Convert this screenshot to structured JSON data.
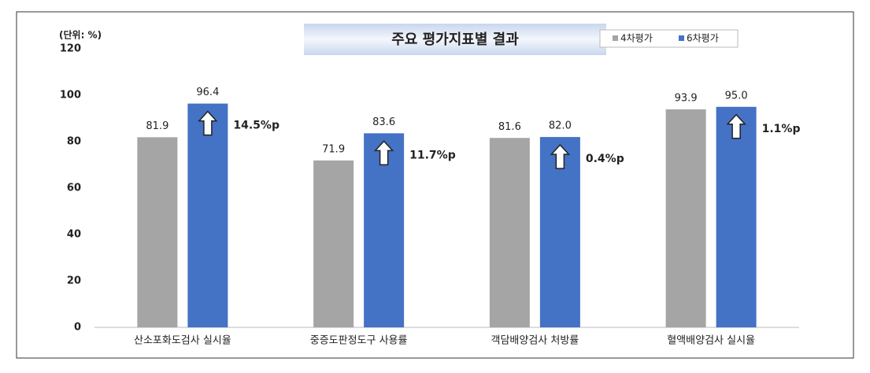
{
  "chart_data": {
    "type": "bar",
    "title": "주요 평가지표별 결과",
    "unit_label": "(단위: %)",
    "categories": [
      "산소포화도검사 실시율",
      "중증도판정도구 사용률",
      "객담배양검사 처방률",
      "혈액배양검사 실시율"
    ],
    "series": [
      {
        "name": "4차평가",
        "color": "#a5a5a5",
        "values": [
          81.9,
          71.9,
          81.6,
          93.9
        ],
        "value_labels": [
          "81.9",
          "71.9",
          "81.6",
          "93.9"
        ]
      },
      {
        "name": "6차평가",
        "color": "#4472c4",
        "values": [
          96.4,
          83.6,
          82.0,
          95.0
        ],
        "value_labels": [
          "96.4",
          "83.6",
          "82.0",
          "95.0"
        ]
      }
    ],
    "annotations": [
      "14.5%p",
      "11.7%p",
      "0.4%p",
      "1.1%p"
    ],
    "ylim": [
      0,
      120
    ],
    "yticks": [
      0,
      20,
      40,
      60,
      80,
      100,
      120
    ],
    "grid": false,
    "legend": "top-right"
  }
}
